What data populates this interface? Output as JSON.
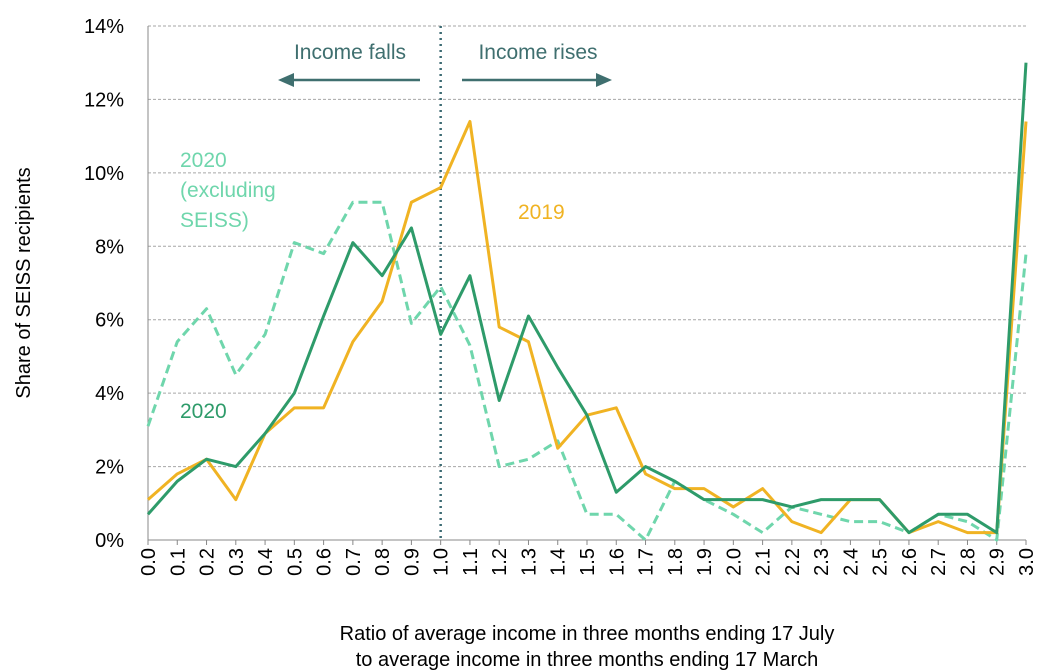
{
  "chart_data": {
    "type": "line",
    "ylabel": "Share of SEISS recipients",
    "xlabel": [
      "Ratio of average income in three months ending 17 July",
      "to average income in three months ending 17 March"
    ],
    "annotations": [
      "Income falls",
      "Income rises"
    ],
    "vline": "1.0",
    "categories": [
      "0.0",
      "0.1",
      "0.2",
      "0.3",
      "0.4",
      "0.5",
      "0.6",
      "0.7",
      "0.8",
      "0.9",
      "1.0",
      "1.1",
      "1.2",
      "1.3",
      "1.4",
      "1.5",
      "1.6",
      "1.7",
      "1.8",
      "1.9",
      "2.0",
      "2.1",
      "2.2",
      "2.3",
      "2.4",
      "2.5",
      "2.6",
      "2.7",
      "2.8",
      "2.9",
      "3.0"
    ],
    "series": [
      {
        "name": "2019",
        "color": "#f0b323",
        "dashed": false,
        "values": [
          1.1,
          1.8,
          2.2,
          1.1,
          2.9,
          3.6,
          3.6,
          5.4,
          6.5,
          9.2,
          9.6,
          11.4,
          5.8,
          5.4,
          2.5,
          3.4,
          3.6,
          1.8,
          1.4,
          1.4,
          0.9,
          1.4,
          0.5,
          0.2,
          1.1,
          1.1,
          0.2,
          0.5,
          0.2,
          0.2,
          11.4
        ]
      },
      {
        "name": "2020",
        "color": "#2e9b6a",
        "dashed": false,
        "values": [
          0.7,
          1.6,
          2.2,
          2.0,
          2.9,
          4.0,
          6.1,
          8.1,
          7.2,
          8.5,
          5.6,
          7.2,
          3.8,
          6.1,
          4.7,
          3.4,
          1.3,
          2.0,
          1.6,
          1.1,
          1.1,
          1.1,
          0.9,
          1.1,
          1.1,
          1.1,
          0.2,
          0.7,
          0.7,
          0.2,
          13.0
        ]
      },
      {
        "name": "2020 (excluding SEISS)",
        "color": "#6fd6ac",
        "dashed": true,
        "values": [
          3.1,
          5.4,
          6.3,
          4.5,
          5.6,
          8.1,
          7.8,
          9.2,
          9.2,
          5.9,
          6.9,
          5.3,
          2.0,
          2.2,
          2.7,
          0.7,
          0.7,
          0.0,
          1.6,
          1.1,
          0.7,
          0.2,
          0.9,
          0.7,
          0.5,
          0.5,
          0.2,
          0.7,
          0.5,
          0.0,
          7.8
        ]
      }
    ],
    "ylim": [
      0,
      14
    ],
    "yticks": [
      {
        "value": 0,
        "label": "0%"
      },
      {
        "value": 2,
        "label": "2%"
      },
      {
        "value": 4,
        "label": "4%"
      },
      {
        "value": 6,
        "label": "6%"
      },
      {
        "value": 8,
        "label": "8%"
      },
      {
        "value": 10,
        "label": "10%"
      },
      {
        "value": 12,
        "label": "12%"
      },
      {
        "value": 14,
        "label": "14%"
      }
    ],
    "grid": true
  }
}
